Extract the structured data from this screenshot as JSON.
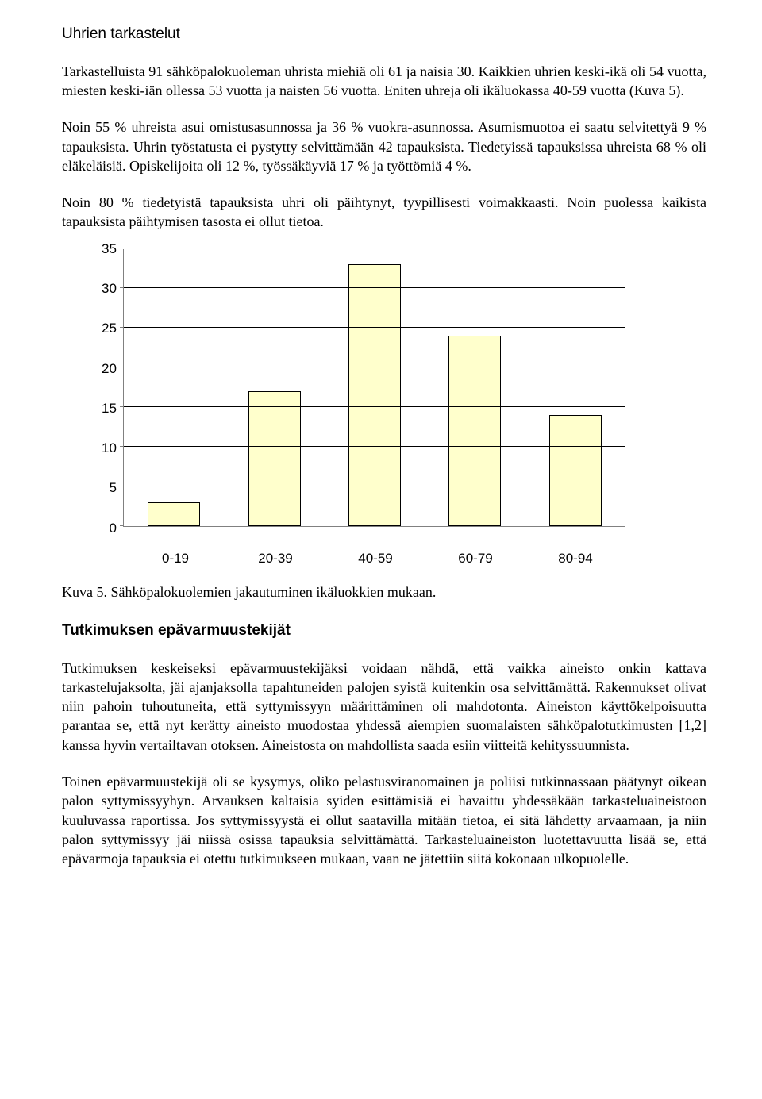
{
  "h1": "Uhrien tarkastelut",
  "p1": "Tarkastelluista 91 sähköpalokuoleman uhrista miehiä oli 61 ja naisia 30. Kaikkien uhrien keski-ikä oli 54 vuotta, miesten keski-iän ollessa 53 vuotta ja naisten 56 vuotta. Eniten uhreja oli ikäluokassa 40-59 vuotta (Kuva 5).",
  "p2": "Noin 55 % uhreista asui omistusasunnossa ja 36 % vuokra-asunnossa. Asumismuotoa ei saatu selvitettyä 9 % tapauksista. Uhrin työstatusta ei pystytty selvittämään 42 tapauksista. Tiedetyissä tapauksissa uhreista 68 % oli eläkeläisiä. Opiskelijoita oli 12 %, työssäkäyviä 17 % ja työttömiä 4 %.",
  "p3": "Noin 80 % tiedetyistä tapauksista uhri oli päihtynyt, tyypillisesti voimakkaasti. Noin puolessa kaikista tapauksista päihtymisen tasosta ei ollut tietoa.",
  "chart": {
    "type": "bar",
    "ymax": 35,
    "ytick_step": 5,
    "yticks": [
      "35",
      "30",
      "25",
      "20",
      "15",
      "10",
      "5",
      "0"
    ],
    "categories": [
      "0-19",
      "20-39",
      "40-59",
      "60-79",
      "80-94"
    ],
    "values": [
      3,
      17,
      33,
      24,
      14
    ],
    "bar_fill": "#ffffcc",
    "bar_border": "#000000",
    "grid_color": "#000000",
    "axis_color": "#808080",
    "background": "#ffffff"
  },
  "caption": "Kuva 5. Sähköpalokuolemien jakautuminen ikäluokkien mukaan.",
  "h2": "Tutkimuksen epävarmuustekijät",
  "p4": "Tutkimuksen keskeiseksi epävarmuustekijäksi voidaan nähdä, että vaikka aineisto onkin kattava tarkastelujaksolta, jäi ajanjaksolla tapahtuneiden palojen syistä kuitenkin osa selvittämättä. Rakennukset olivat niin pahoin tuhoutuneita, että syttymissyyn määrittäminen oli mahdotonta. Aineiston käyttökelpoisuutta parantaa se, että nyt kerätty aineisto muodostaa yhdessä aiempien suomalaisten sähköpalotutkimusten [1,2] kanssa hyvin vertailtavan otoksen. Aineistosta on mahdollista saada esiin viitteitä kehityssuunnista.",
  "p5": "Toinen epävarmuustekijä oli se kysymys, oliko pelastusviranomainen ja poliisi tutkinnassaan päätynyt oikean palon syttymissyyhyn. Arvauksen kaltaisia syiden esittämisiä ei havaittu yhdessäkään tarkasteluaineistoon kuuluvassa raportissa. Jos syttymissyystä ei ollut saatavilla mitään tietoa, ei sitä lähdetty arvaamaan, ja niin palon syttymissyy jäi niissä osissa tapauksia selvittämättä. Tarkasteluaineiston luotettavuutta lisää se, että epävarmoja tapauksia ei otettu tutkimukseen mukaan, vaan ne jätettiin siitä kokonaan ulkopuolelle."
}
